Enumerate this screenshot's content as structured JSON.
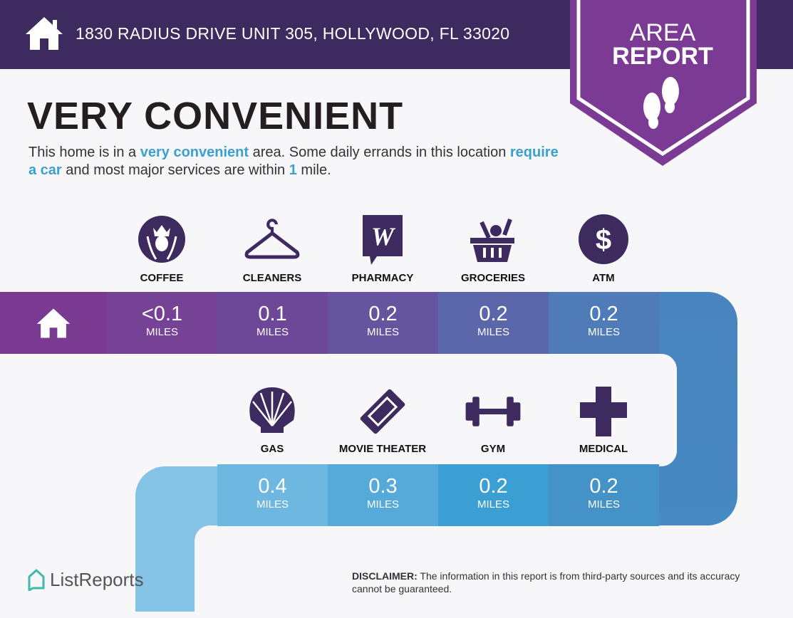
{
  "header": {
    "address": "1830 RADIUS DRIVE UNIT 305, HOLLYWOOD, FL 33020",
    "badge_line1": "AREA",
    "badge_line2": "REPORT"
  },
  "headline": "VERY CONVENIENT",
  "description": {
    "p1": "This home is in a ",
    "h1": "very convenient",
    "p2": " area. Some daily errands in this location ",
    "h2": "require a car",
    "p3": " and most major services are within ",
    "h3": "1",
    "p4": " mile."
  },
  "unit": "MILES",
  "row1": [
    {
      "label": "COFFEE",
      "value": "<0.1",
      "icon": "starbucks-icon"
    },
    {
      "label": "CLEANERS",
      "value": "0.1",
      "icon": "hanger-icon"
    },
    {
      "label": "PHARMACY",
      "value": "0.2",
      "icon": "walgreens-icon"
    },
    {
      "label": "GROCERIES",
      "value": "0.2",
      "icon": "basket-icon"
    },
    {
      "label": "ATM",
      "value": "0.2",
      "icon": "dollar-icon"
    }
  ],
  "row2": [
    {
      "label": "GAS",
      "value": "0.4",
      "icon": "shell-icon"
    },
    {
      "label": "MOVIE THEATER",
      "value": "0.3",
      "icon": "ticket-icon"
    },
    {
      "label": "GYM",
      "value": "0.2",
      "icon": "dumbbell-icon"
    },
    {
      "label": "MEDICAL",
      "value": "0.2",
      "icon": "cross-icon"
    }
  ],
  "footer": {
    "logo": "ListReports",
    "disclaimer_label": "DISCLAIMER:",
    "disclaimer": " The information in this report is from third-party sources and its accuracy cannot be guaranteed."
  },
  "colors": {
    "header": "#3d2a5e",
    "badge": "#7b3a94",
    "accent": "#3aa0d0",
    "icon": "#3d2a5e"
  }
}
